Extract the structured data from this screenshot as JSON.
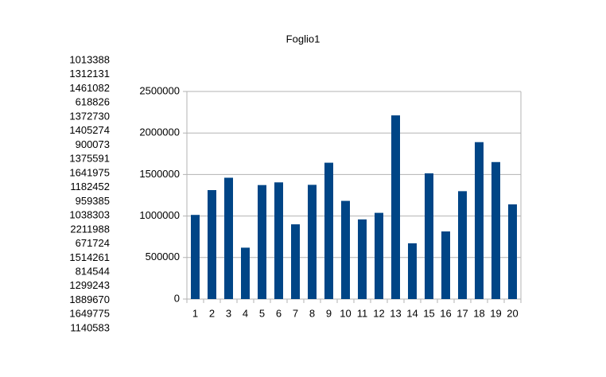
{
  "chart_data": {
    "type": "bar",
    "title": "Foglio1",
    "categories": [
      1,
      2,
      3,
      4,
      5,
      6,
      7,
      8,
      9,
      10,
      11,
      12,
      13,
      14,
      15,
      16,
      17,
      18,
      19,
      20
    ],
    "values": [
      1013388,
      1312131,
      1461082,
      618826,
      1372730,
      1405274,
      900073,
      1375591,
      1641975,
      1182452,
      959385,
      1038303,
      2211988,
      671724,
      1514261,
      814544,
      1299243,
      1889670,
      1649775,
      1140583
    ],
    "color": "#004586",
    "ylim": [
      0,
      2500000
    ],
    "yticks": [
      0,
      500000,
      1000000,
      1500000,
      2000000,
      2500000
    ],
    "grid": true
  }
}
